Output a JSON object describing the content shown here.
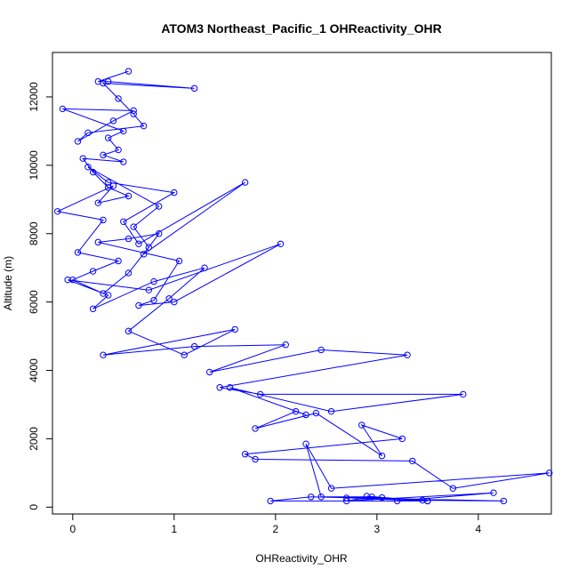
{
  "chart_data": {
    "type": "line",
    "title": "ATOM3 Northeast_Pacific_1 OHReactivity_OHR",
    "xlabel": "OHReactivity_OHR",
    "ylabel": "Altitude (m)",
    "xlim": [
      -0.2,
      4.72
    ],
    "ylim": [
      -200,
      13300
    ],
    "xticks": [
      0,
      1,
      2,
      3,
      4
    ],
    "yticks": [
      0,
      2000,
      4000,
      6000,
      8000,
      10000,
      12000
    ],
    "grid": false,
    "marker": "open-circle",
    "series_color": "#0000ff",
    "x": [
      0.55,
      0.25,
      0.35,
      1.2,
      0.3,
      0.45,
      0.6,
      0.7,
      0.15,
      0.05,
      0.4,
      0.6,
      -0.1,
      0.5,
      0.35,
      0.45,
      0.3,
      0.5,
      0.1,
      0.2,
      0.35,
      0.55,
      0.25,
      0.4,
      -0.15,
      0.3,
      0.05,
      0.45,
      0.2,
      0.0,
      0.3,
      0.55,
      0.75,
      0.6,
      0.85,
      0.15,
      0.35,
      1.0,
      0.5,
      0.65,
      1.7,
      0.7,
      0.85,
      0.55,
      0.25,
      1.05,
      0.8,
      0.65,
      1.0,
      2.05,
      0.75,
      -0.05,
      0.35,
      0.2,
      0.8,
      1.3,
      0.95,
      0.55,
      1.1,
      1.6,
      0.3,
      1.2,
      2.1,
      1.35,
      2.45,
      3.3,
      1.45,
      1.85,
      3.85,
      2.55,
      1.55,
      2.3,
      2.2,
      1.8,
      2.4,
      3.05,
      2.85,
      3.25,
      1.7,
      1.8,
      3.35,
      3.75,
      4.7,
      2.55,
      2.3,
      2.45,
      2.95,
      2.7,
      4.15,
      3.2,
      3.45,
      4.25,
      2.35,
      1.95,
      3.5,
      2.9,
      3.05,
      2.7,
      3.5
    ],
    "y": [
      12750,
      12450,
      12450,
      12250,
      12400,
      11950,
      11500,
      11150,
      10950,
      10700,
      11300,
      11600,
      11650,
      11000,
      10800,
      10450,
      10300,
      10100,
      10200,
      9800,
      9350,
      9100,
      8900,
      9400,
      8650,
      8400,
      7450,
      7200,
      6900,
      6650,
      6250,
      6850,
      7600,
      8200,
      8800,
      9950,
      9500,
      9200,
      8350,
      7700,
      9500,
      7400,
      8000,
      7850,
      7750,
      7200,
      6050,
      5900,
      6000,
      7700,
      6350,
      6650,
      6200,
      5800,
      6600,
      7000,
      6100,
      5150,
      4450,
      5200,
      4450,
      4700,
      4750,
      3950,
      4600,
      4450,
      3500,
      3300,
      3300,
      2800,
      3500,
      2700,
      2800,
      2300,
      2750,
      1500,
      2400,
      2000,
      1550,
      1400,
      1350,
      550,
      1000,
      550,
      1850,
      300,
      300,
      180,
      420,
      180,
      200,
      180,
      300,
      180,
      180,
      320,
      280,
      270,
      180
    ]
  }
}
